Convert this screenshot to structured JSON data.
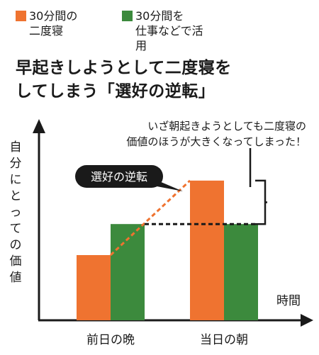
{
  "chart_data": {
    "type": "bar",
    "title": "早起きしようとして二度寝をしてしまう「選好の逆転」",
    "title_lines": [
      "早起きしようとして二度寝を",
      "してしまう「選好の逆転」"
    ],
    "xlabel": "時間",
    "ylabel": "自分にとっての価値",
    "categories": [
      "前日の晩",
      "当日の朝"
    ],
    "series": [
      {
        "name": "30分間の二度寝",
        "name_lines": [
          "30分間の",
          "二度寝"
        ],
        "color": "#ef7330",
        "values": [
          2.1,
          4.5
        ]
      },
      {
        "name": "30分間を仕事などで活用",
        "name_lines": [
          "30分間を",
          "仕事などで活用"
        ],
        "color": "#3c8a3d",
        "values": [
          3.1,
          3.1
        ]
      }
    ],
    "ylim": [
      0,
      6.3
    ],
    "legend_position": "top",
    "grid": false,
    "annotations": {
      "callout_lines": [
        "いざ朝起きようとしても二度寝の",
        "価値のほうが大きくなってしまった！"
      ],
      "bubble_label": "選好の逆転"
    }
  }
}
